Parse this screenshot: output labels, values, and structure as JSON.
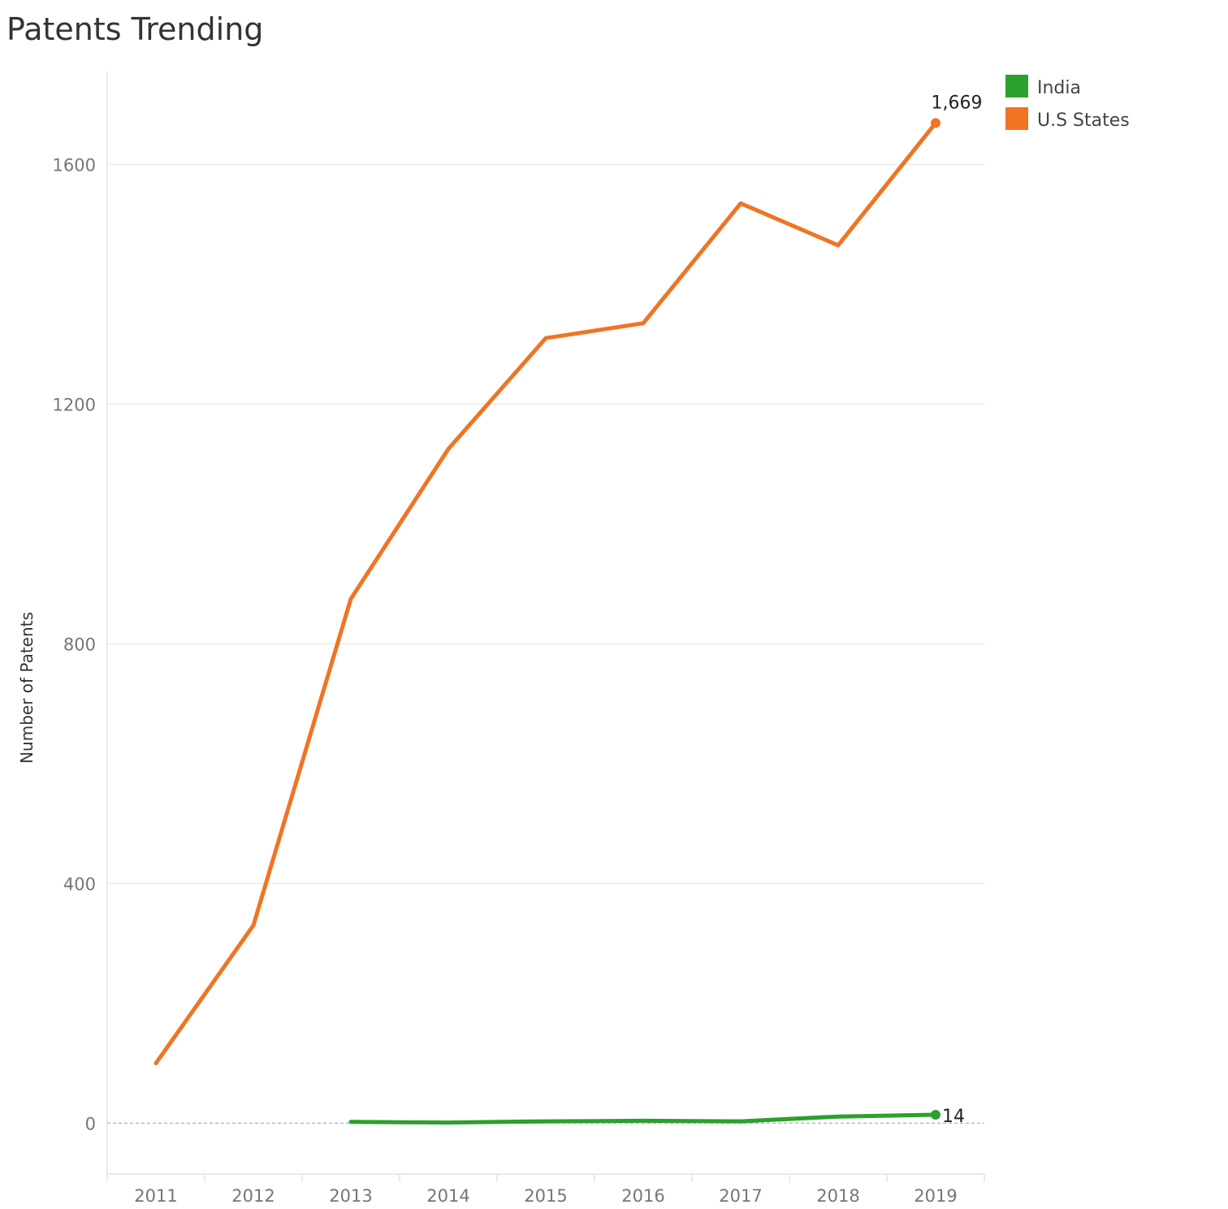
{
  "chart_data": {
    "type": "line",
    "title": "Patents Trending",
    "xlabel": "",
    "ylabel": "Number of Patents",
    "categories": [
      "2011",
      "2012",
      "2013",
      "2014",
      "2015",
      "2016",
      "2017",
      "2018",
      "2019"
    ],
    "yticks": [
      0,
      400,
      800,
      1200,
      1600
    ],
    "ylim": [
      -85,
      1755
    ],
    "grid": true,
    "legend_position": "top-right",
    "series": [
      {
        "name": "India",
        "color": "#2ca02c",
        "values": [
          null,
          null,
          2,
          1,
          3,
          4,
          3,
          11,
          14
        ],
        "end_label": "14"
      },
      {
        "name": "U.S States",
        "color": "#f07424",
        "values": [
          100,
          330,
          875,
          1125,
          1310,
          1335,
          1535,
          1465,
          1669
        ],
        "end_label": "1,669"
      }
    ]
  }
}
